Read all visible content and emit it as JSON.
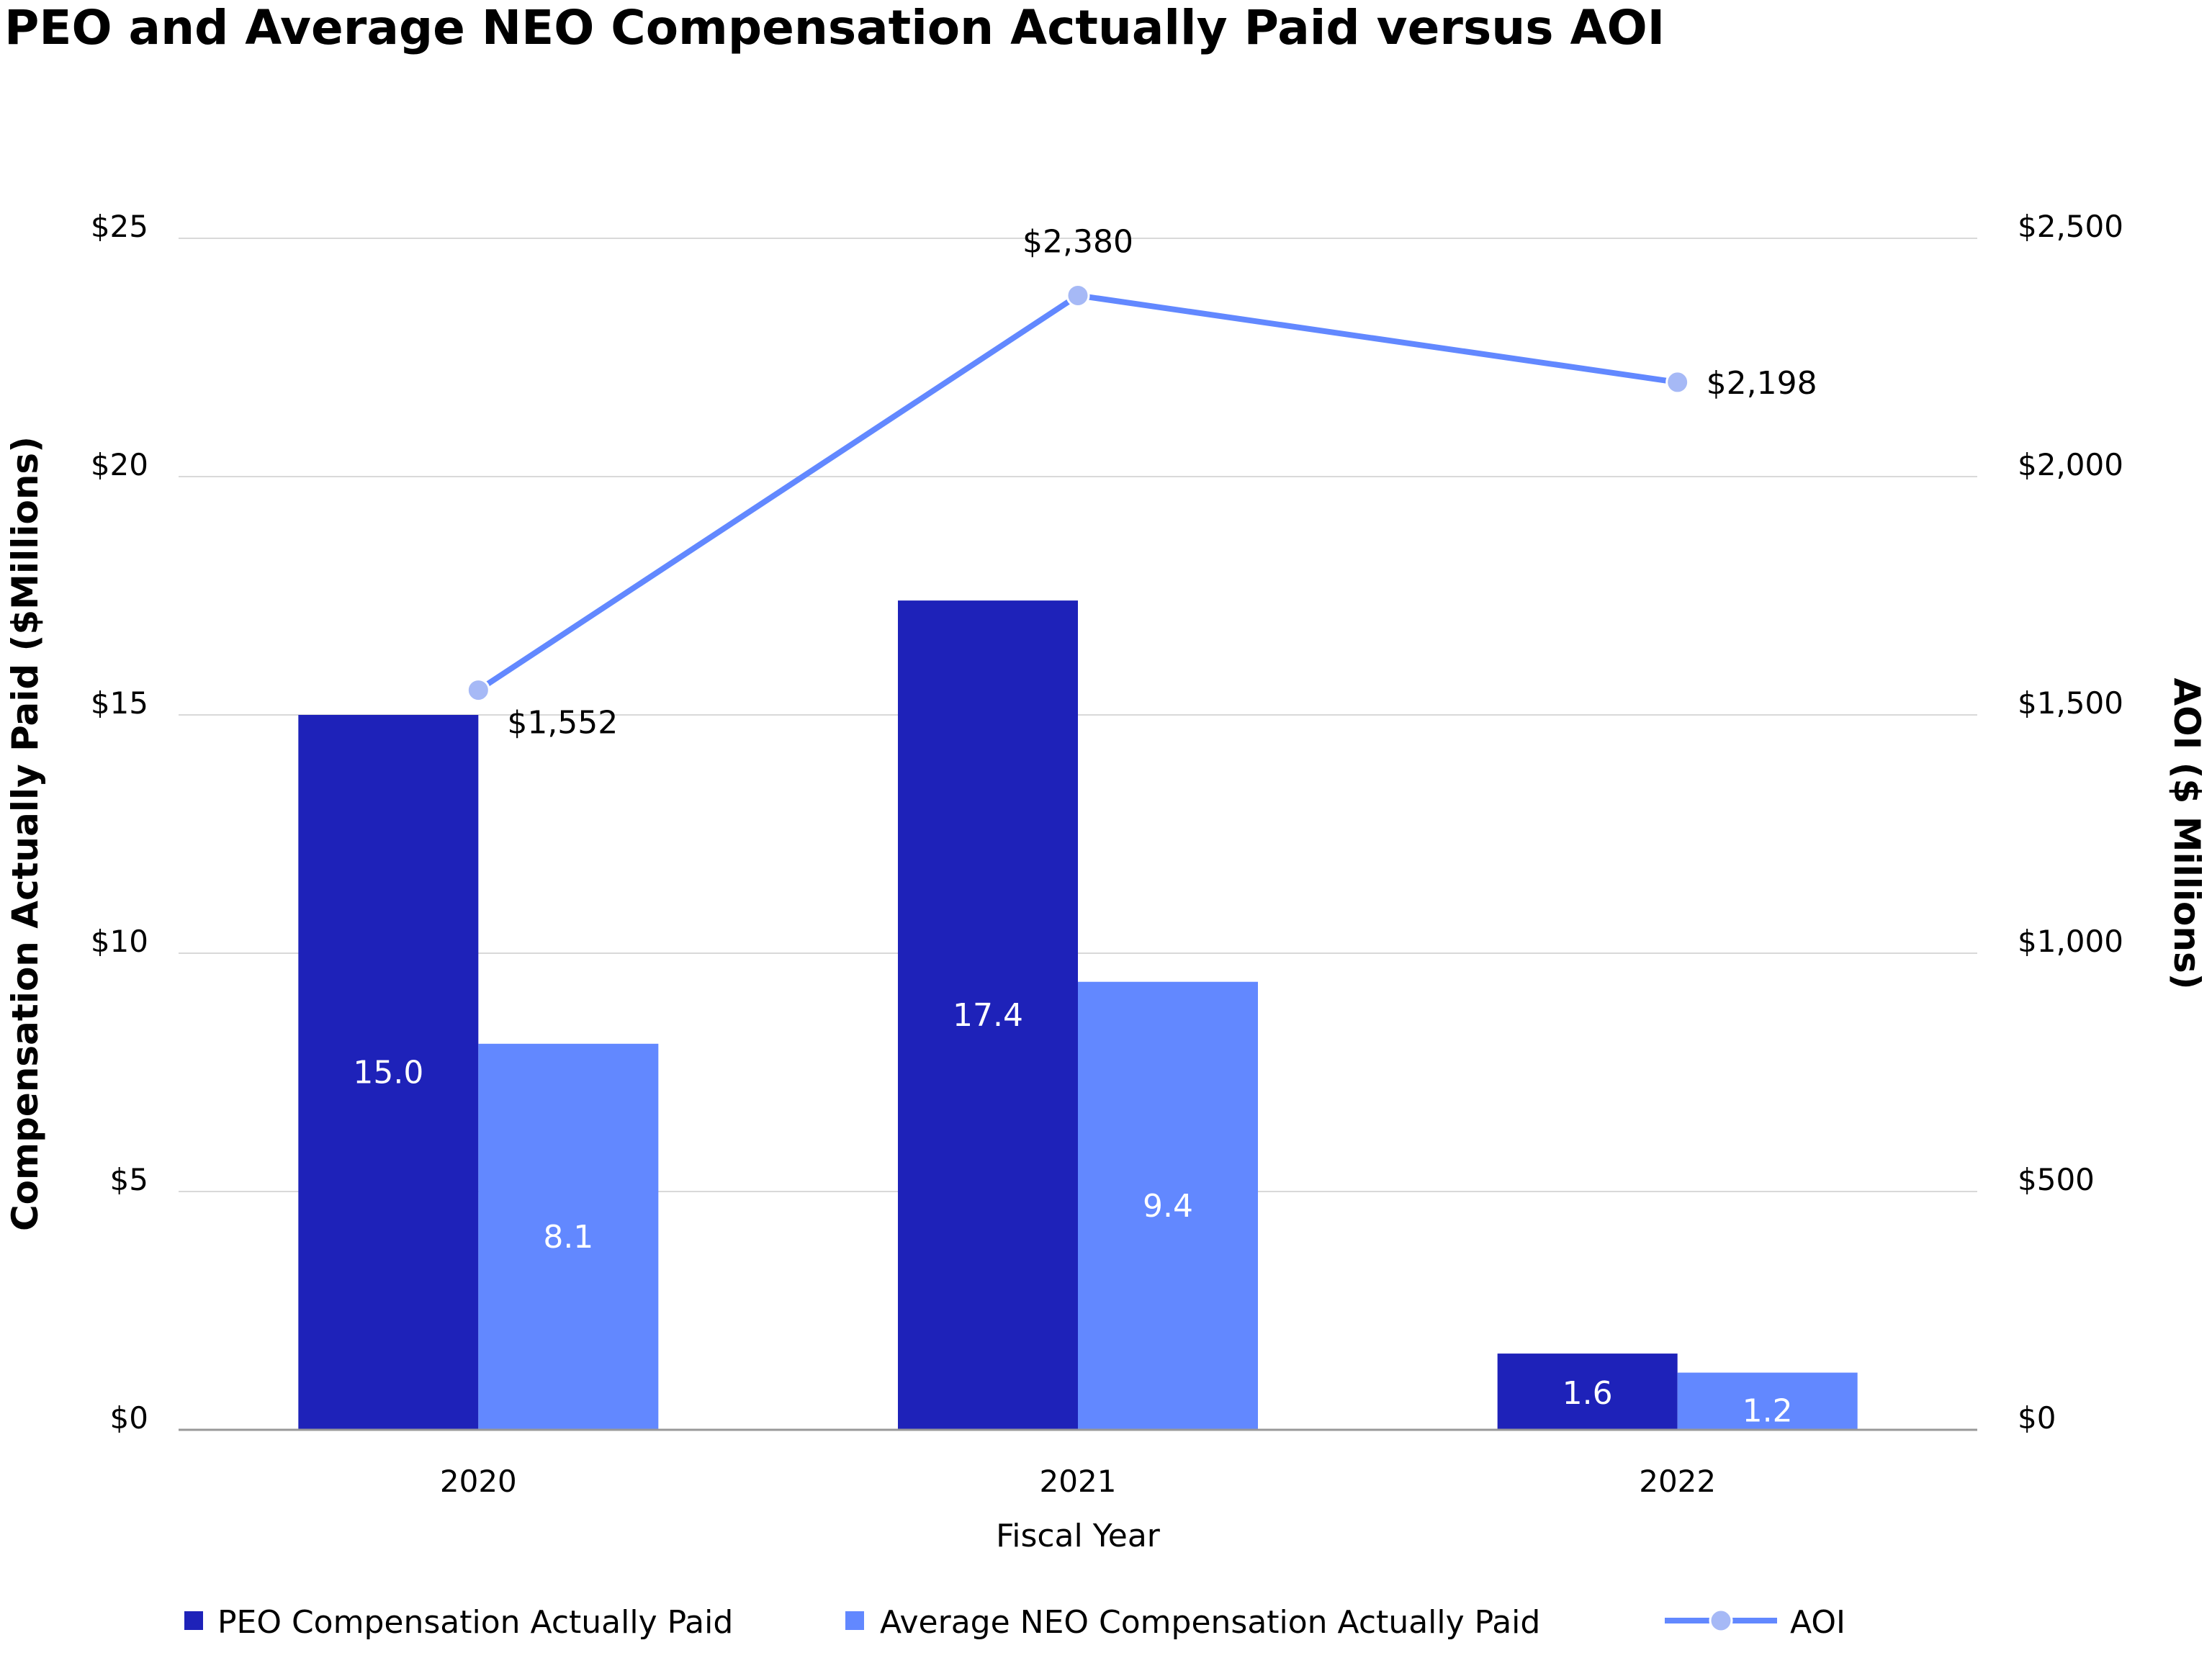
{
  "title": "PEO and Average NEO Compensation Actually Paid versus AOI",
  "colors": {
    "peo": "#1e22b9",
    "neo": "#6288ff",
    "aoi_line": "#6288ff",
    "aoi_marker": "#a6b9f6",
    "grid": "#d9d9d9",
    "axis": "#999999"
  },
  "chart_data": {
    "type": "bar",
    "title": "PEO and Average NEO Compensation Actually Paid versus AOI",
    "xlabel": "Fiscal Year",
    "ylabel": "Compensation Actually Paid ($Millions)",
    "y2label": "AOI ($ Millions)",
    "categories": [
      "2020",
      "2021",
      "2022"
    ],
    "ylim": [
      0,
      25
    ],
    "y2lim": [
      0,
      2500
    ],
    "yticks": [
      {
        "value": 0,
        "label": "$0"
      },
      {
        "value": 5,
        "label": "$5"
      },
      {
        "value": 10,
        "label": "$10"
      },
      {
        "value": 15,
        "label": "$15"
      },
      {
        "value": 20,
        "label": "$20"
      },
      {
        "value": 25,
        "label": "$25"
      }
    ],
    "y2ticks": [
      {
        "value": 0,
        "label": "$0"
      },
      {
        "value": 500,
        "label": "$500"
      },
      {
        "value": 1000,
        "label": "$1,000"
      },
      {
        "value": 1500,
        "label": "$1,500"
      },
      {
        "value": 2000,
        "label": "$2,000"
      },
      {
        "value": 2500,
        "label": "$2,500"
      }
    ],
    "series": [
      {
        "name": "PEO Compensation Actually Paid",
        "type": "bar",
        "axis": "left",
        "values": [
          15.0,
          17.4,
          1.6
        ],
        "labels": [
          "15.0",
          "17.4",
          "1.6"
        ]
      },
      {
        "name": "Average NEO Compensation Actually Paid",
        "type": "bar",
        "axis": "left",
        "values": [
          8.1,
          9.4,
          1.2
        ],
        "labels": [
          "8.1",
          "9.4",
          "1.2"
        ]
      },
      {
        "name": "AOI",
        "type": "line",
        "axis": "right",
        "values": [
          1552,
          2380,
          2198
        ],
        "labels": [
          "$1,552",
          "$2,380",
          "$2,198"
        ]
      }
    ],
    "legend": [
      "PEO Compensation Actually Paid",
      "Average NEO Compensation Actually Paid",
      "AOI"
    ],
    "legend_position": "bottom",
    "grid": true
  }
}
